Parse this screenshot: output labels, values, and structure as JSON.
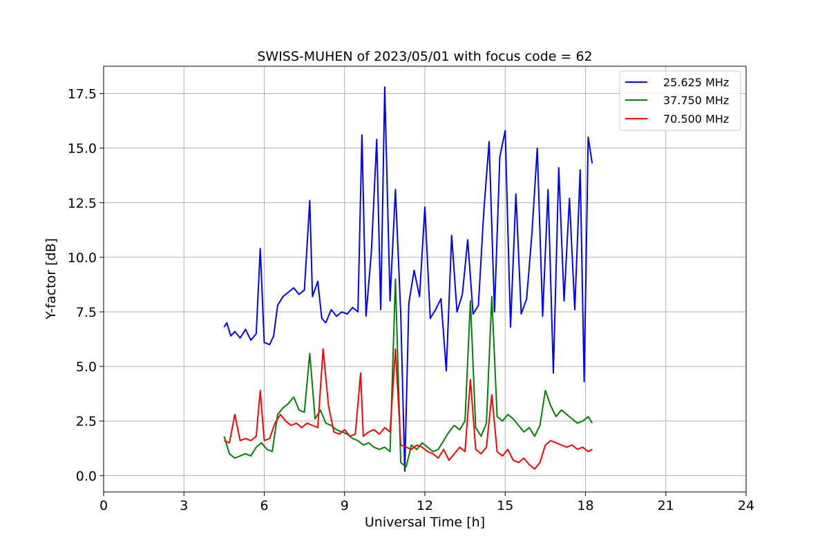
{
  "chart_data": {
    "type": "line",
    "title": "SWISS-MUHEN of 2023/05/01 with focus code = 62",
    "xlabel": "Universal Time [h]",
    "ylabel": "Y-factor [dB]",
    "xlim": [
      0,
      24
    ],
    "ylim": [
      -0.75,
      18.75
    ],
    "xticks": [
      0,
      3,
      6,
      9,
      12,
      15,
      18,
      21,
      24
    ],
    "yticks": [
      0.0,
      2.5,
      5.0,
      7.5,
      10.0,
      12.5,
      15.0,
      17.5
    ],
    "xtick_labels": [
      "0",
      "3",
      "6",
      "9",
      "12",
      "15",
      "18",
      "21",
      "24"
    ],
    "ytick_labels": [
      "0.0",
      "2.5",
      "5.0",
      "7.5",
      "10.0",
      "12.5",
      "15.0",
      "17.5"
    ],
    "grid": true,
    "legend_position": "top-right",
    "series": [
      {
        "name": "25.625 MHz",
        "color": "#0000ff",
        "x": [
          4.5,
          4.6,
          4.75,
          4.9,
          5.1,
          5.3,
          5.5,
          5.7,
          5.85,
          6.0,
          6.2,
          6.35,
          6.5,
          6.7,
          6.9,
          7.1,
          7.3,
          7.5,
          7.7,
          7.8,
          8.0,
          8.15,
          8.3,
          8.5,
          8.7,
          8.9,
          9.1,
          9.3,
          9.5,
          9.65,
          9.8,
          10.0,
          10.2,
          10.35,
          10.5,
          10.7,
          10.9,
          11.1,
          11.25,
          11.4,
          11.6,
          11.8,
          12.0,
          12.2,
          12.4,
          12.6,
          12.8,
          13.0,
          13.2,
          13.4,
          13.6,
          13.8,
          14.0,
          14.2,
          14.4,
          14.6,
          14.8,
          15.0,
          15.2,
          15.4,
          15.6,
          15.8,
          16.0,
          16.2,
          16.4,
          16.6,
          16.8,
          17.0,
          17.2,
          17.4,
          17.6,
          17.8,
          17.95,
          18.1,
          18.25
        ],
        "y": [
          6.8,
          7.0,
          6.4,
          6.6,
          6.3,
          6.7,
          6.2,
          6.5,
          10.4,
          6.1,
          6.0,
          6.4,
          7.8,
          8.2,
          8.4,
          8.6,
          8.3,
          8.5,
          12.6,
          8.2,
          8.9,
          7.2,
          7.0,
          7.6,
          7.3,
          7.5,
          7.4,
          7.7,
          7.5,
          15.6,
          7.3,
          10.2,
          15.4,
          7.6,
          17.8,
          8.0,
          13.1,
          7.4,
          0.2,
          7.9,
          9.4,
          8.2,
          12.3,
          7.2,
          7.6,
          8.1,
          4.8,
          11.0,
          7.5,
          8.3,
          10.8,
          7.4,
          7.8,
          12.1,
          15.3,
          7.5,
          14.6,
          15.8,
          6.8,
          12.9,
          7.4,
          8.1,
          11.1,
          15.0,
          7.3,
          13.1,
          4.7,
          14.1,
          8.0,
          12.7,
          7.6,
          14.0,
          4.3,
          15.5,
          14.3
        ]
      },
      {
        "name": "37.750 MHz",
        "color": "#008000",
        "x": [
          4.5,
          4.7,
          4.9,
          5.1,
          5.3,
          5.5,
          5.7,
          5.9,
          6.1,
          6.3,
          6.5,
          6.7,
          6.9,
          7.1,
          7.3,
          7.5,
          7.7,
          7.9,
          8.1,
          8.3,
          8.5,
          8.7,
          8.9,
          9.1,
          9.3,
          9.5,
          9.7,
          9.9,
          10.1,
          10.3,
          10.5,
          10.7,
          10.9,
          11.1,
          11.3,
          11.5,
          11.7,
          11.9,
          12.1,
          12.3,
          12.5,
          12.7,
          12.9,
          13.1,
          13.3,
          13.5,
          13.7,
          13.9,
          14.1,
          14.3,
          14.5,
          14.7,
          14.9,
          15.1,
          15.3,
          15.5,
          15.7,
          15.9,
          16.1,
          16.3,
          16.5,
          16.7,
          16.9,
          17.1,
          17.3,
          17.5,
          17.7,
          17.9,
          18.1,
          18.25
        ],
        "y": [
          1.8,
          1.0,
          0.8,
          0.9,
          1.0,
          0.9,
          1.3,
          1.5,
          1.2,
          1.1,
          2.8,
          3.1,
          3.3,
          3.6,
          3.0,
          2.9,
          5.6,
          2.6,
          3.0,
          2.4,
          2.3,
          2.1,
          2.0,
          1.9,
          1.7,
          1.6,
          1.4,
          1.5,
          1.3,
          1.2,
          1.3,
          1.1,
          9.0,
          0.6,
          0.4,
          1.4,
          1.2,
          1.5,
          1.3,
          1.1,
          1.2,
          1.6,
          2.0,
          2.3,
          2.1,
          2.5,
          8.0,
          2.2,
          1.8,
          2.4,
          8.2,
          2.7,
          2.5,
          2.8,
          2.6,
          2.3,
          2.0,
          2.2,
          1.8,
          2.3,
          3.9,
          3.2,
          2.7,
          3.0,
          2.8,
          2.6,
          2.4,
          2.5,
          2.7,
          2.4
        ]
      },
      {
        "name": "70.500 MHz",
        "color": "#ff0000",
        "x": [
          4.5,
          4.7,
          4.9,
          5.1,
          5.3,
          5.5,
          5.7,
          5.85,
          6.0,
          6.2,
          6.4,
          6.6,
          6.8,
          7.0,
          7.2,
          7.4,
          7.6,
          7.8,
          8.0,
          8.2,
          8.4,
          8.6,
          8.8,
          9.0,
          9.2,
          9.4,
          9.6,
          9.7,
          9.9,
          10.1,
          10.3,
          10.5,
          10.7,
          10.9,
          11.1,
          11.3,
          11.5,
          11.7,
          11.9,
          12.1,
          12.3,
          12.5,
          12.7,
          12.9,
          13.1,
          13.3,
          13.5,
          13.7,
          13.9,
          14.1,
          14.3,
          14.5,
          14.7,
          14.9,
          15.1,
          15.3,
          15.5,
          15.7,
          15.9,
          16.1,
          16.3,
          16.5,
          16.7,
          16.9,
          17.1,
          17.3,
          17.5,
          17.7,
          17.9,
          18.1,
          18.25
        ],
        "y": [
          1.6,
          1.5,
          2.8,
          1.6,
          1.7,
          1.6,
          1.8,
          3.9,
          1.6,
          1.7,
          2.4,
          2.8,
          2.5,
          2.3,
          2.4,
          2.2,
          2.4,
          2.3,
          2.2,
          5.8,
          3.2,
          2.0,
          1.9,
          2.1,
          1.8,
          1.9,
          4.7,
          1.8,
          2.0,
          2.1,
          1.9,
          2.2,
          2.0,
          5.8,
          1.4,
          1.3,
          1.2,
          1.4,
          1.3,
          1.1,
          1.0,
          0.8,
          1.2,
          0.7,
          1.0,
          1.3,
          1.1,
          4.4,
          1.2,
          1.0,
          1.3,
          3.7,
          1.1,
          0.9,
          1.2,
          0.7,
          0.6,
          0.8,
          0.5,
          0.3,
          0.6,
          1.4,
          1.6,
          1.5,
          1.4,
          1.3,
          1.4,
          1.2,
          1.3,
          1.1,
          1.2
        ]
      }
    ]
  }
}
